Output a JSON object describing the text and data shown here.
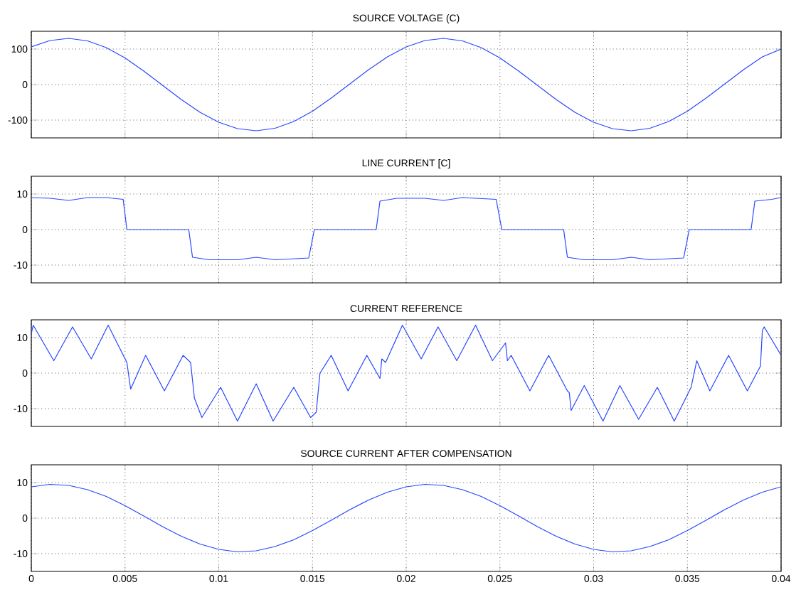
{
  "chart_data": [
    {
      "type": "line",
      "title": "SOURCE VOLTAGE (C)",
      "color": "#2646ff",
      "grid": true,
      "tick_labels": "y",
      "xlim": [
        0,
        0.04
      ],
      "xticks": [
        0,
        0.005,
        0.01,
        0.015,
        0.02,
        0.025,
        0.03,
        0.035,
        0.04
      ],
      "ylim": [
        -150,
        150
      ],
      "yticks": [
        -100,
        0,
        100
      ],
      "x": [
        0,
        0.001,
        0.002,
        0.003,
        0.004,
        0.005,
        0.006,
        0.007,
        0.008,
        0.009,
        0.01,
        0.011,
        0.012,
        0.013,
        0.014,
        0.015,
        0.016,
        0.017,
        0.018,
        0.019,
        0.02,
        0.021,
        0.022,
        0.023,
        0.024,
        0.025,
        0.026,
        0.027,
        0.028,
        0.029,
        0.03,
        0.031,
        0.032,
        0.033,
        0.034,
        0.035,
        0.036,
        0.037,
        0.038,
        0.039,
        0.04
      ],
      "values": [
        106,
        124,
        130,
        123,
        104,
        75,
        38,
        -2,
        -42,
        -78,
        -106,
        -124,
        -130,
        -123,
        -104,
        -75,
        -38,
        2,
        42,
        78,
        106,
        124,
        130,
        123,
        104,
        75,
        38,
        -2,
        -42,
        -78,
        -106,
        -124,
        -130,
        -123,
        -104,
        -75,
        -38,
        2,
        42,
        78,
        100
      ]
    },
    {
      "type": "line",
      "title": "LINE CURRENT [C]",
      "color": "#2646ff",
      "grid": true,
      "tick_labels": "y",
      "xlim": [
        0,
        0.04
      ],
      "xticks": [
        0,
        0.005,
        0.01,
        0.015,
        0.02,
        0.025,
        0.03,
        0.035,
        0.04
      ],
      "ylim": [
        -15,
        15
      ],
      "yticks": [
        -10,
        0,
        10
      ],
      "x": [
        0,
        0.001,
        0.002,
        0.003,
        0.004,
        0.0049,
        0.0051,
        0.0084,
        0.0086,
        0.0095,
        0.011,
        0.012,
        0.013,
        0.0148,
        0.0151,
        0.0184,
        0.0186,
        0.0195,
        0.021,
        0.022,
        0.023,
        0.0248,
        0.0251,
        0.0284,
        0.0286,
        0.0295,
        0.031,
        0.032,
        0.033,
        0.0348,
        0.0351,
        0.0384,
        0.0386,
        0.0395,
        0.04
      ],
      "values": [
        9,
        8.8,
        8.2,
        9,
        9,
        8.5,
        0,
        0,
        -7.8,
        -8.5,
        -8.5,
        -7.8,
        -8.5,
        -8,
        0,
        0,
        8,
        8.8,
        8.8,
        8.2,
        9,
        8.5,
        0,
        0,
        -7.8,
        -8.5,
        -8.5,
        -7.8,
        -8.5,
        -8,
        0,
        0,
        8,
        8.5,
        9
      ]
    },
    {
      "type": "line",
      "title": "CURRENT REFERENCE",
      "color": "#2646ff",
      "grid": true,
      "tick_labels": "y",
      "xlim": [
        0,
        0.04
      ],
      "xticks": [
        0,
        0.005,
        0.01,
        0.015,
        0.02,
        0.025,
        0.03,
        0.035,
        0.04
      ],
      "ylim": [
        -15,
        15
      ],
      "yticks": [
        -10,
        0,
        10
      ],
      "x": [
        0,
        0.0001,
        0.0012,
        0.0022,
        0.0032,
        0.0041,
        0.0051,
        0.0053,
        0.0061,
        0.0071,
        0.0081,
        0.0085,
        0.0087,
        0.0091,
        0.0101,
        0.011,
        0.012,
        0.0129,
        0.014,
        0.0149,
        0.0152,
        0.0154,
        0.016,
        0.0169,
        0.0179,
        0.0186,
        0.0187,
        0.0189,
        0.0198,
        0.0208,
        0.0217,
        0.0227,
        0.0237,
        0.0246,
        0.0253,
        0.0254,
        0.0256,
        0.0266,
        0.0276,
        0.0286,
        0.0287,
        0.0288,
        0.0295,
        0.0305,
        0.0314,
        0.0324,
        0.0334,
        0.0343,
        0.0352,
        0.0355,
        0.0362,
        0.0372,
        0.0382,
        0.0389,
        0.039,
        0.0391,
        0.04
      ],
      "values": [
        11,
        13.5,
        3.5,
        13,
        4,
        13.5,
        3,
        -4.5,
        5,
        -5,
        5,
        3,
        -7,
        -12.5,
        -4,
        -13.5,
        -3,
        -13.5,
        -4,
        -12.5,
        -11,
        0,
        5,
        -5,
        5,
        -1.5,
        4,
        3,
        13.5,
        4,
        13,
        3.5,
        13.5,
        3.5,
        8.5,
        3.5,
        5,
        -5,
        5,
        -5,
        -5.5,
        -10.5,
        -3.5,
        -13.5,
        -3.5,
        -13,
        -4,
        -13.5,
        -4,
        3.5,
        -5,
        5,
        -5,
        2,
        12,
        13,
        5
      ]
    },
    {
      "type": "line",
      "title": "SOURCE CURRENT AFTER COMPENSATION",
      "color": "#2646ff",
      "grid": true,
      "xlim": [
        0,
        0.04
      ],
      "xticks": [
        0,
        0.005,
        0.01,
        0.015,
        0.02,
        0.025,
        0.03,
        0.035,
        0.04
      ],
      "ylim": [
        -15,
        15
      ],
      "yticks": [
        -10,
        0,
        10
      ],
      "x": [
        0,
        0.001,
        0.002,
        0.003,
        0.004,
        0.005,
        0.006,
        0.007,
        0.008,
        0.009,
        0.01,
        0.011,
        0.012,
        0.013,
        0.014,
        0.015,
        0.016,
        0.017,
        0.018,
        0.019,
        0.02,
        0.021,
        0.022,
        0.023,
        0.024,
        0.025,
        0.026,
        0.027,
        0.028,
        0.029,
        0.03,
        0.031,
        0.032,
        0.033,
        0.034,
        0.035,
        0.036,
        0.037,
        0.038,
        0.039,
        0.04
      ],
      "values": [
        8.8,
        9.5,
        9.2,
        8,
        6.1,
        3.5,
        0.6,
        -2.4,
        -5.1,
        -7.3,
        -8.8,
        -9.5,
        -9.2,
        -8,
        -6.1,
        -3.5,
        -0.6,
        2.4,
        5.1,
        7.3,
        8.8,
        9.5,
        9.2,
        8,
        6.1,
        3.5,
        0.6,
        -2.4,
        -5.1,
        -7.3,
        -8.8,
        -9.5,
        -9.2,
        -8,
        -6.1,
        -3.5,
        -0.6,
        2.4,
        5.1,
        7.3,
        8.8
      ]
    }
  ]
}
